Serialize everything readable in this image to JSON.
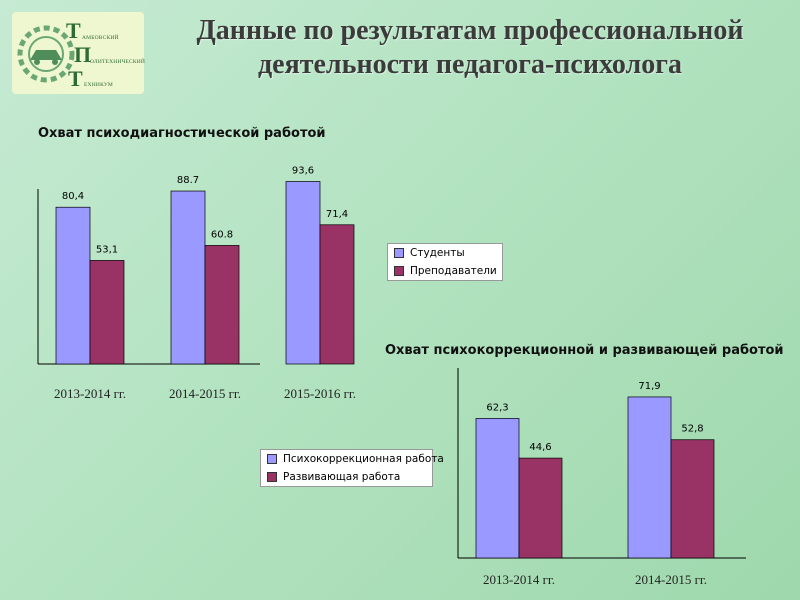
{
  "page": {
    "title_line1": "Данные по результатам профессиональной",
    "title_line2": "деятельности педагога-психолога"
  },
  "logo": {
    "letters": [
      "Т",
      "П",
      "Т"
    ],
    "words": [
      "АМБОВСКИЙ",
      "ОЛИТЕХНИЧЕСКИЙ",
      "ЕХНИКУМ"
    ]
  },
  "colors": {
    "series_a": "#9999ff",
    "series_b": "#993366"
  },
  "chart_data": [
    {
      "type": "bar",
      "title": "Охват психодиагностической работой",
      "categories": [
        "2013-2014 гг.",
        "2014-2015 гг.",
        "2015-2016 гг."
      ],
      "series": [
        {
          "name": "Студенты",
          "values": [
            80.4,
            88.7,
            93.6
          ],
          "labels": [
            "80,4",
            "88.7",
            "93,6"
          ]
        },
        {
          "name": "Преподаватели",
          "values": [
            53.1,
            60.8,
            71.4
          ],
          "labels": [
            "53,1",
            "60.8",
            "71,4"
          ]
        }
      ],
      "ylim": [
        0,
        100
      ],
      "grid": false,
      "legend": "right"
    },
    {
      "type": "bar",
      "title": "Охват психокоррекционной и развивающей работой",
      "categories": [
        "2013-2014 гг.",
        "2014-2015 гг."
      ],
      "series": [
        {
          "name": "Психокоррекционная работа",
          "values": [
            62.3,
            71.9
          ],
          "labels": [
            "62,3",
            "71,9"
          ]
        },
        {
          "name": "Развивающая работа",
          "values": [
            44.6,
            52.8
          ],
          "labels": [
            "44,6",
            "52,8"
          ]
        }
      ],
      "ylim": [
        0,
        85
      ],
      "grid": false,
      "legend": "left"
    }
  ]
}
